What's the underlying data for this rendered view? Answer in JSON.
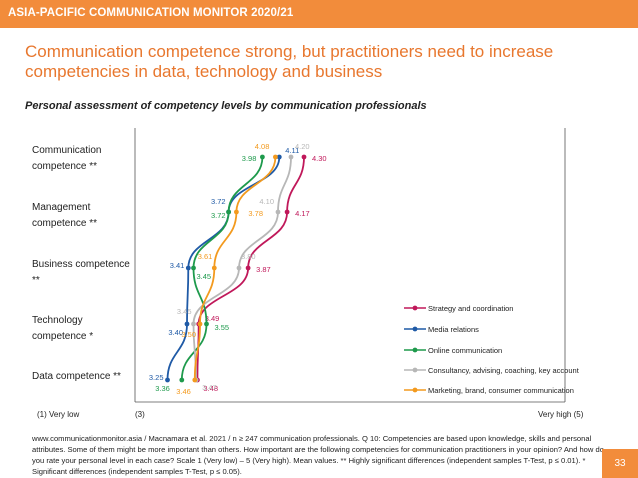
{
  "header": {
    "brand": "ASIA-PACIFIC COMMUNICATION MONITOR 2020/21",
    "headline": "Communication competence strong, but practitioners need to increase competencies in data, technology and business",
    "subtitle": "Personal assessment of competency levels by communication professionals"
  },
  "rows": [
    {
      "label": "Communication competence **"
    },
    {
      "label": "Management competence **"
    },
    {
      "label": "Business competence **"
    },
    {
      "label": "Technology competence *"
    },
    {
      "label": "Data competence **"
    }
  ],
  "axis": {
    "left_label": "(1) Very low",
    "mid_label": "(3)",
    "right_label": "Very high (5)"
  },
  "footnote": "www.communicationmonitor.asia / Macnamara et al. 2021 / n ≥ 247 communication professionals. Q 10: Competencies are based upon knowledge, skills and personal attributes. Some of them might be more important than others. How important are the following competencies for communication practitioners in your opinion? And how do you rate your personal level in each case? Scale 1 (Very low) – 5 (Very high). Mean values. ** Highly significant differences (independent samples T-Test, p ≤ 0.01). * Significant differences (independent samples T-Test, p ≤ 0.05).",
  "page_number": "33",
  "colors": {
    "brand": "#f28c3b",
    "headline": "#e8772e"
  },
  "chart_data": {
    "type": "line",
    "orientation": "horizontal-profile",
    "categories": [
      "Communication competence **",
      "Management competence **",
      "Business competence **",
      "Technology competence *",
      "Data competence **"
    ],
    "xlim": [
      1,
      5
    ],
    "xlabel": "",
    "ylabel": "",
    "grid": false,
    "legend_position": "right",
    "series": [
      {
        "name": "Strategy and coordination",
        "color": "#c0185a",
        "values": [
          4.3,
          4.17,
          3.87,
          3.49,
          3.48
        ]
      },
      {
        "name": "Media relations",
        "color": "#1f5aa6",
        "values": [
          4.11,
          3.72,
          3.41,
          3.4,
          3.25
        ]
      },
      {
        "name": "Online communication",
        "color": "#1e9a4c",
        "values": [
          3.98,
          3.72,
          3.45,
          3.55,
          3.36
        ]
      },
      {
        "name": "Consultancy, advising, coaching, key account",
        "color": "#b7b7b7",
        "values": [
          4.2,
          4.1,
          3.8,
          3.45,
          3.47
        ]
      },
      {
        "name": "Marketing, brand, consumer communication",
        "color": "#f39a1e",
        "values": [
          4.08,
          3.78,
          3.61,
          3.5,
          3.46
        ]
      }
    ]
  }
}
